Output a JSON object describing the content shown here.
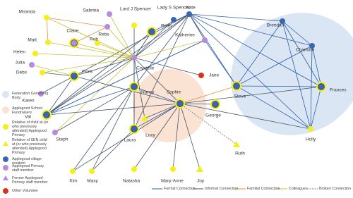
{
  "nodes": [
    {
      "label": "Sabrina"
    },
    {
      "label": "Lord J Spencer"
    },
    {
      "label": "Lady S Spencer"
    },
    {
      "label": "Kate"
    },
    {
      "label": "Peter"
    },
    {
      "label": "Miranda"
    },
    {
      "label": "Rebs"
    },
    {
      "label": "Claire"
    },
    {
      "label": "Rob"
    },
    {
      "label": "Matt"
    },
    {
      "label": "Helen"
    },
    {
      "label": "Katherine"
    },
    {
      "label": "Brendan"
    },
    {
      "label": "Charlotte"
    },
    {
      "label": "Crystelle"
    },
    {
      "label": "Julia"
    },
    {
      "label": "Debs"
    },
    {
      "label": "Flora"
    },
    {
      "label": "Jane"
    },
    {
      "label": "Karen"
    },
    {
      "label": "Nancy"
    },
    {
      "label": "Sophie"
    },
    {
      "label": "Steve"
    },
    {
      "label": "Frances"
    },
    {
      "label": "Val"
    },
    {
      "label": "George"
    },
    {
      "label": "Laura"
    },
    {
      "label": "Lucy"
    },
    {
      "label": "Steph"
    },
    {
      "label": "Holly"
    },
    {
      "label": "Ruth"
    },
    {
      "label": "Kim"
    },
    {
      "label": "Maxy"
    },
    {
      "label": "Natasha"
    },
    {
      "label": "Mary-Anne"
    },
    {
      "label": "Joy"
    }
  ],
  "legend": {
    "items": [
      "Federation Governing Body",
      "Applegood School Fundraisers",
      "Relative of child at (or who previously attended) Applegood Primary",
      "Relative of SEN child at (or who previously attended) Applegood Primary",
      "Applegood village resident",
      "Applegood Primary staff member",
      "Former Applegood Primary staff member",
      "Other Volunteer"
    ],
    "connections": [
      "Formal Connection",
      "Informal Connection",
      "Familial Connection",
      "Colleagues",
      "Broken Connection"
    ]
  }
}
